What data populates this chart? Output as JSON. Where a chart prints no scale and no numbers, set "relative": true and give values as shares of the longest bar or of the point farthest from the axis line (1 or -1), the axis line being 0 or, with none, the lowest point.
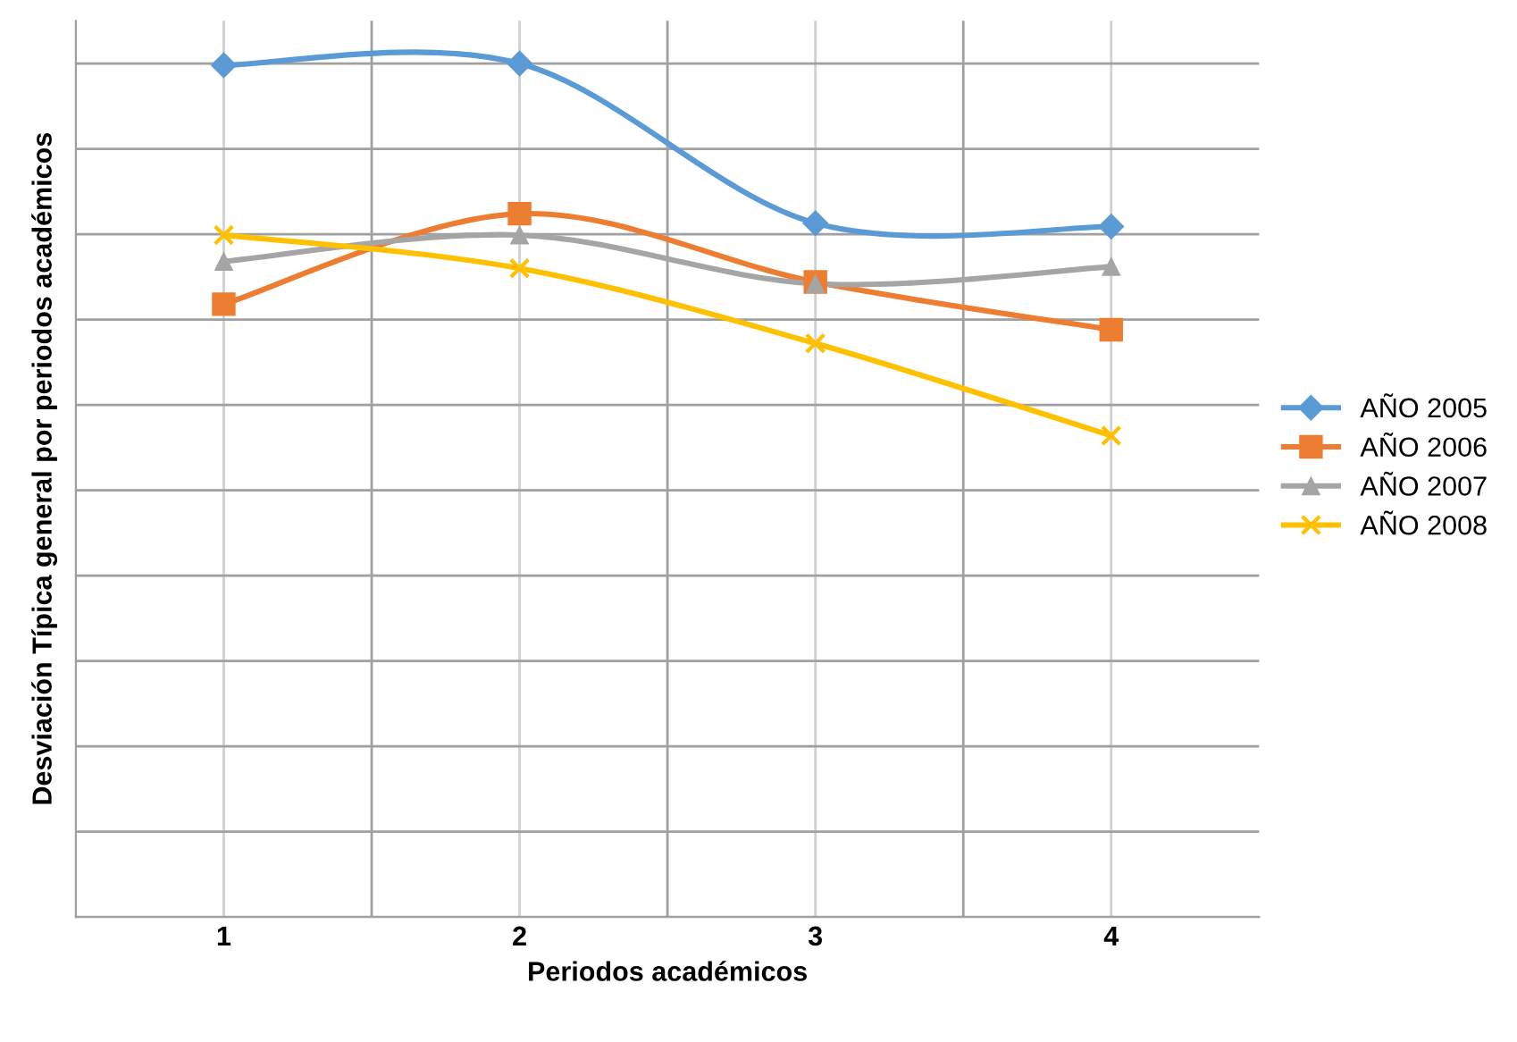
{
  "chart_data": {
    "type": "line",
    "relative": true,
    "xlabel": "Periodos académicos",
    "ylabel": "Desviación Típica general por periodos académicos",
    "categories": [
      "1",
      "2",
      "3",
      "4"
    ],
    "grid": true,
    "legend": "right",
    "line_style": "solid",
    "series": [
      {
        "name": "AÑO 2005",
        "color": "#5b9bd5",
        "marker": "diamond",
        "values": [
          0.998,
          1.0,
          0.813,
          0.809
        ]
      },
      {
        "name": "AÑO 2006",
        "color": "#ed7d31",
        "marker": "square",
        "values": [
          0.718,
          0.824,
          0.744,
          0.688
        ]
      },
      {
        "name": "AÑO 2007",
        "color": "#a5a5a5",
        "marker": "triangle",
        "values": [
          0.768,
          0.799,
          0.742,
          0.762
        ]
      },
      {
        "name": "AÑO 2008",
        "color": "#ffc000",
        "marker": "cross",
        "values": [
          0.799,
          0.76,
          0.672,
          0.564
        ]
      }
    ]
  }
}
